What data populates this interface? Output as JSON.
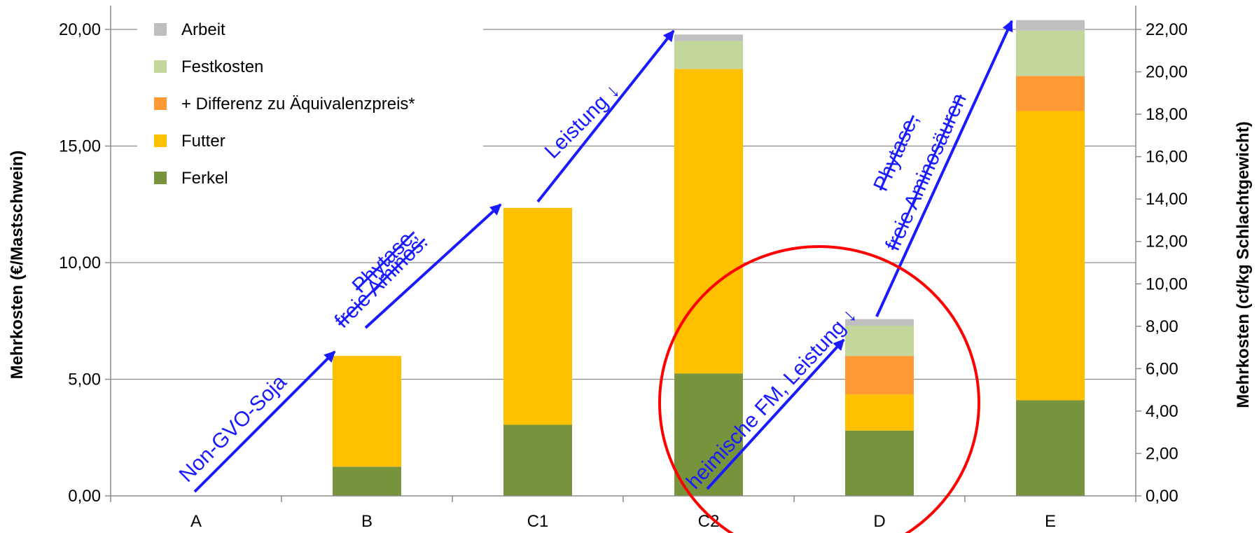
{
  "chart_data": {
    "type": "bar",
    "stacked": true,
    "categories": [
      "A",
      "B",
      "C1",
      "C2",
      "D",
      "E"
    ],
    "series": [
      {
        "name": "Ferkel",
        "color": "#77933c",
        "values": [
          0,
          1.25,
          3.05,
          5.25,
          2.8,
          4.1
        ]
      },
      {
        "name": "Futter",
        "color": "#ffc000",
        "values": [
          0,
          4.75,
          9.3,
          13.05,
          1.55,
          12.4
        ]
      },
      {
        "name": "+ Differenz zu Äquivalenzpreis*",
        "color": "#ff9933",
        "values": [
          0,
          0,
          0,
          0,
          1.65,
          1.5
        ]
      },
      {
        "name": "Festkosten",
        "color": "#c3d69b",
        "values": [
          0,
          0,
          0,
          1.2,
          1.3,
          1.95
        ]
      },
      {
        "name": "Arbeit",
        "color": "#bfbfbf",
        "values": [
          0,
          0,
          0,
          0.28,
          0.28,
          0.45
        ]
      }
    ],
    "ylabel": "Mehrkosten (€/Mastschwein)",
    "y2label": "Mehrkosten (ct/kg Schlachtgewicht)",
    "ylim": [
      0,
      20
    ],
    "y2lim": [
      0,
      22
    ],
    "yticks": [
      "0,00",
      "5,00",
      "10,00",
      "15,00",
      "20,00"
    ],
    "y2ticks": [
      "0,00",
      "2,00",
      "4,00",
      "6,00",
      "8,00",
      "10,00",
      "12,00",
      "14,00",
      "16,00",
      "18,00",
      "20,00",
      "22,00"
    ],
    "legend_position": "top-left",
    "grid": true,
    "annotations": [
      {
        "text": "Non-GVO-Soja"
      },
      {
        "text": "Phytase,",
        "strike": true
      },
      {
        "text": "freie Aminos.",
        "strike": true
      },
      {
        "text": "Leistung ↓"
      },
      {
        "text": "heimische FM, Leistung ↓"
      },
      {
        "text": "Phytase,",
        "strike": true
      },
      {
        "text": "freie Aminosäuren",
        "strike": true
      }
    ]
  }
}
